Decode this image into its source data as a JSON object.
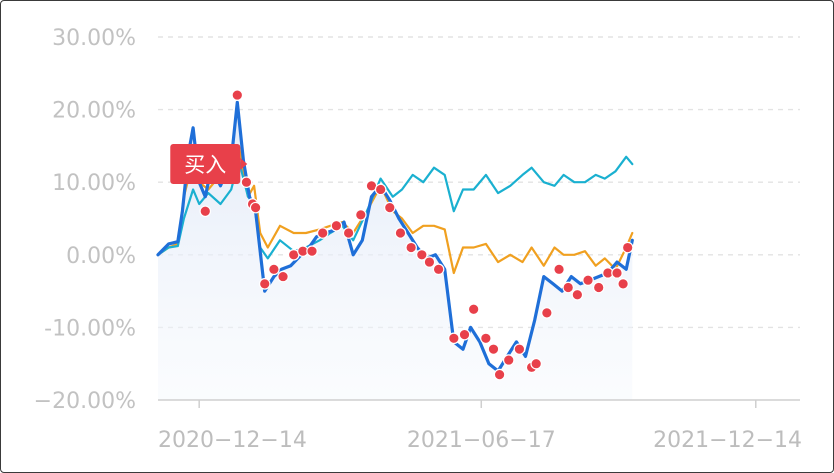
{
  "chart_data": {
    "type": "line",
    "y_axis": {
      "min": -20,
      "max": 30,
      "ticks": [
        {
          "value": 30,
          "label": "30.00%"
        },
        {
          "value": 20,
          "label": "20.00%"
        },
        {
          "value": 10,
          "label": "10.00%"
        },
        {
          "value": 0,
          "label": "0.00%"
        },
        {
          "value": -10,
          "label": "-10.00%"
        },
        {
          "value": -20,
          "label": "−20.00%"
        }
      ]
    },
    "x_axis": {
      "start": "2020-11-17",
      "end": "2022-01-12",
      "ticks": [
        {
          "date": "2020-12-14",
          "label": "2020−12−14"
        },
        {
          "date": "2021-06-17",
          "label": "2021−06−17"
        },
        {
          "date": "2021-12-14",
          "label": "2021−12−14"
        }
      ]
    },
    "grid": true,
    "series": [
      {
        "color": "#1f6fd8",
        "area_fill": true,
        "points": [
          [
            "2020-11-17",
            0
          ],
          [
            "2020-11-24",
            1.5
          ],
          [
            "2020-11-30",
            1.8
          ],
          [
            "2020-12-03",
            6
          ],
          [
            "2020-12-07",
            14
          ],
          [
            "2020-12-10",
            17.5
          ],
          [
            "2020-12-14",
            10
          ],
          [
            "2020-12-18",
            8
          ],
          [
            "2020-12-22",
            12
          ],
          [
            "2020-12-28",
            9.5
          ],
          [
            "2021-01-04",
            13
          ],
          [
            "2021-01-08",
            21
          ],
          [
            "2021-01-12",
            13
          ],
          [
            "2021-01-16",
            8
          ],
          [
            "2021-01-20",
            6
          ],
          [
            "2021-01-26",
            -5
          ],
          [
            "2021-02-01",
            -3
          ],
          [
            "2021-02-06",
            -2
          ],
          [
            "2021-02-12",
            -1.5
          ],
          [
            "2021-02-19",
            0
          ],
          [
            "2021-02-24",
            1
          ],
          [
            "2021-03-01",
            2.5
          ],
          [
            "2021-03-07",
            3
          ],
          [
            "2021-03-14",
            3.5
          ],
          [
            "2021-03-19",
            4.5
          ],
          [
            "2021-03-25",
            0
          ],
          [
            "2021-03-31",
            2
          ],
          [
            "2021-04-06",
            8
          ],
          [
            "2021-04-12",
            9.5
          ],
          [
            "2021-04-18",
            7.5
          ],
          [
            "2021-04-24",
            5
          ],
          [
            "2021-04-30",
            3
          ],
          [
            "2021-05-06",
            1
          ],
          [
            "2021-05-12",
            -0.5
          ],
          [
            "2021-05-18",
            0
          ],
          [
            "2021-05-24",
            -2
          ],
          [
            "2021-05-30",
            -12
          ],
          [
            "2021-06-05",
            -13
          ],
          [
            "2021-06-10",
            -10
          ],
          [
            "2021-06-16",
            -12
          ],
          [
            "2021-06-22",
            -15
          ],
          [
            "2021-06-28",
            -16
          ],
          [
            "2021-07-04",
            -14
          ],
          [
            "2021-07-10",
            -12
          ],
          [
            "2021-07-16",
            -14
          ],
          [
            "2021-07-22",
            -9
          ],
          [
            "2021-07-28",
            -3
          ],
          [
            "2021-08-03",
            -4
          ],
          [
            "2021-08-09",
            -5
          ],
          [
            "2021-08-15",
            -3
          ],
          [
            "2021-08-21",
            -4
          ],
          [
            "2021-08-27",
            -3.5
          ],
          [
            "2021-09-02",
            -3
          ],
          [
            "2021-09-08",
            -2.5
          ],
          [
            "2021-09-14",
            -1
          ],
          [
            "2021-09-20",
            -2
          ],
          [
            "2021-09-24",
            2
          ]
        ]
      },
      {
        "color": "#f0a020",
        "area_fill": false,
        "points": [
          [
            "2020-11-17",
            0
          ],
          [
            "2020-11-24",
            1
          ],
          [
            "2020-11-30",
            1.5
          ],
          [
            "2020-12-04",
            8
          ],
          [
            "2020-12-10",
            13
          ],
          [
            "2020-12-14",
            10
          ],
          [
            "2020-12-20",
            9
          ],
          [
            "2020-12-28",
            11
          ],
          [
            "2021-01-04",
            12
          ],
          [
            "2021-01-09",
            15
          ],
          [
            "2021-01-15",
            8
          ],
          [
            "2021-01-19",
            9.5
          ],
          [
            "2021-01-23",
            3
          ],
          [
            "2021-01-28",
            1
          ],
          [
            "2021-02-05",
            4
          ],
          [
            "2021-02-14",
            3
          ],
          [
            "2021-02-22",
            3
          ],
          [
            "2021-03-03",
            3.5
          ],
          [
            "2021-03-10",
            4
          ],
          [
            "2021-03-18",
            4.5
          ],
          [
            "2021-03-25",
            3
          ],
          [
            "2021-04-03",
            6
          ],
          [
            "2021-04-12",
            9.5
          ],
          [
            "2021-04-20",
            6
          ],
          [
            "2021-04-26",
            5
          ],
          [
            "2021-05-03",
            3
          ],
          [
            "2021-05-10",
            4
          ],
          [
            "2021-05-17",
            4
          ],
          [
            "2021-05-24",
            3.5
          ],
          [
            "2021-05-30",
            -2.5
          ],
          [
            "2021-06-05",
            1
          ],
          [
            "2021-06-12",
            1
          ],
          [
            "2021-06-20",
            1.5
          ],
          [
            "2021-06-28",
            -1
          ],
          [
            "2021-07-06",
            0
          ],
          [
            "2021-07-14",
            -1
          ],
          [
            "2021-07-20",
            1
          ],
          [
            "2021-07-28",
            -1.5
          ],
          [
            "2021-08-04",
            1
          ],
          [
            "2021-08-10",
            0
          ],
          [
            "2021-08-17",
            0
          ],
          [
            "2021-08-24",
            0.5
          ],
          [
            "2021-08-31",
            -1.5
          ],
          [
            "2021-09-06",
            -0.5
          ],
          [
            "2021-09-13",
            -2
          ],
          [
            "2021-09-20",
            1
          ],
          [
            "2021-09-24",
            3
          ]
        ]
      },
      {
        "color": "#1ab0d0",
        "area_fill": false,
        "points": [
          [
            "2020-11-17",
            0
          ],
          [
            "2020-11-24",
            1
          ],
          [
            "2020-11-30",
            1.2
          ],
          [
            "2020-12-04",
            5
          ],
          [
            "2020-12-10",
            9
          ],
          [
            "2020-12-14",
            7
          ],
          [
            "2020-12-20",
            8.5
          ],
          [
            "2020-12-28",
            7
          ],
          [
            "2021-01-04",
            9
          ],
          [
            "2021-01-09",
            13
          ],
          [
            "2021-01-15",
            8
          ],
          [
            "2021-01-19",
            7
          ],
          [
            "2021-01-23",
            1
          ],
          [
            "2021-01-28",
            -0.5
          ],
          [
            "2021-02-05",
            2
          ],
          [
            "2021-02-14",
            0.5
          ],
          [
            "2021-02-22",
            1
          ],
          [
            "2021-03-03",
            2
          ],
          [
            "2021-03-10",
            3
          ],
          [
            "2021-03-18",
            4
          ],
          [
            "2021-03-25",
            2
          ],
          [
            "2021-04-03",
            6
          ],
          [
            "2021-04-12",
            10.5
          ],
          [
            "2021-04-20",
            8
          ],
          [
            "2021-04-26",
            9
          ],
          [
            "2021-05-03",
            11
          ],
          [
            "2021-05-10",
            10
          ],
          [
            "2021-05-17",
            12
          ],
          [
            "2021-05-24",
            11
          ],
          [
            "2021-05-30",
            6
          ],
          [
            "2021-06-05",
            9
          ],
          [
            "2021-06-12",
            9
          ],
          [
            "2021-06-20",
            11
          ],
          [
            "2021-06-28",
            8.5
          ],
          [
            "2021-07-06",
            9.5
          ],
          [
            "2021-07-14",
            11
          ],
          [
            "2021-07-20",
            12
          ],
          [
            "2021-07-28",
            10
          ],
          [
            "2021-08-04",
            9.5
          ],
          [
            "2021-08-10",
            11
          ],
          [
            "2021-08-17",
            10
          ],
          [
            "2021-08-24",
            10
          ],
          [
            "2021-08-31",
            11
          ],
          [
            "2021-09-06",
            10.5
          ],
          [
            "2021-09-13",
            11.5
          ],
          [
            "2021-09-20",
            13.5
          ],
          [
            "2021-09-24",
            12.5
          ]
        ]
      }
    ],
    "markers": {
      "color": "#e8404a",
      "points": [
        [
          "2020-12-18",
          6
        ],
        [
          "2021-01-08",
          22
        ],
        [
          "2021-01-14",
          10
        ],
        [
          "2021-01-18",
          7
        ],
        [
          "2021-01-20",
          6.5
        ],
        [
          "2021-01-26",
          -4
        ],
        [
          "2021-02-01",
          -2
        ],
        [
          "2021-02-07",
          -3
        ],
        [
          "2021-02-14",
          0
        ],
        [
          "2021-02-20",
          0.5
        ],
        [
          "2021-02-26",
          0.5
        ],
        [
          "2021-03-05",
          3
        ],
        [
          "2021-03-14",
          4
        ],
        [
          "2021-03-22",
          3
        ],
        [
          "2021-03-30",
          5.5
        ],
        [
          "2021-04-06",
          9.5
        ],
        [
          "2021-04-12",
          9
        ],
        [
          "2021-04-18",
          6.5
        ],
        [
          "2021-04-25",
          3
        ],
        [
          "2021-05-02",
          1
        ],
        [
          "2021-05-09",
          0
        ],
        [
          "2021-05-14",
          -1
        ],
        [
          "2021-05-20",
          -2
        ],
        [
          "2021-05-30",
          -11.5
        ],
        [
          "2021-06-06",
          -11
        ],
        [
          "2021-06-12",
          -7.5
        ],
        [
          "2021-06-20",
          -11.5
        ],
        [
          "2021-06-25",
          -13
        ],
        [
          "2021-06-29",
          -16.5
        ],
        [
          "2021-07-05",
          -14.5
        ],
        [
          "2021-07-12",
          -13
        ],
        [
          "2021-07-20",
          -15.5
        ],
        [
          "2021-07-23",
          -15
        ],
        [
          "2021-07-30",
          -8
        ],
        [
          "2021-08-07",
          -2
        ],
        [
          "2021-08-13",
          -4.5
        ],
        [
          "2021-08-19",
          -5.5
        ],
        [
          "2021-08-26",
          -3.5
        ],
        [
          "2021-09-02",
          -4.5
        ],
        [
          "2021-09-08",
          -2.5
        ],
        [
          "2021-09-14",
          -2.5
        ],
        [
          "2021-09-18",
          -4
        ],
        [
          "2021-09-21",
          1
        ]
      ]
    },
    "annotation": {
      "text": "买入",
      "color": "#e8404a",
      "date": "2020-12-18",
      "value": 12.5
    }
  }
}
